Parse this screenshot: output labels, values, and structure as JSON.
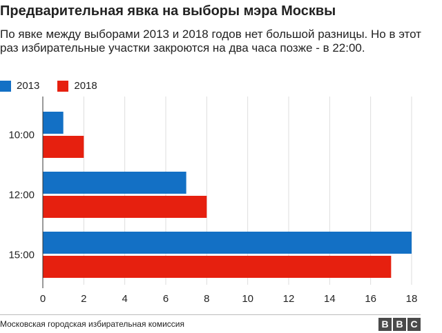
{
  "header": {
    "title": "Предварительная явка на выборы мэра Москвы",
    "subtitle": "По явке между выборами 2013 и 2018 годов нет большой разницы. Но в этот раз избирательные участки закроются на два часа позже - в 22:00."
  },
  "footer": {
    "source": "Московская городская избирательная комиссия",
    "logo_letters": [
      "B",
      "B",
      "C"
    ]
  },
  "chart_data": {
    "type": "bar",
    "orientation": "horizontal",
    "title": "Предварительная явка на выборы мэра Москвы",
    "subtitle": "По явке между выборами 2013 и 2018 годов нет большой разницы. Но в этот раз избирательные участки закроются на два часа позже - в 22:00.",
    "categories": [
      "10:00",
      "12:00",
      "15:00"
    ],
    "series": [
      {
        "name": "2013",
        "color": "#1370C5",
        "values": [
          1,
          7,
          18
        ]
      },
      {
        "name": "2018",
        "color": "#E6200F",
        "values": [
          2,
          8,
          17
        ]
      }
    ],
    "xlim": [
      0,
      18
    ],
    "xticks": [
      "0",
      "2",
      "4",
      "6",
      "8",
      "10",
      "12",
      "14",
      "16",
      "18"
    ],
    "grid": true,
    "legend": "top-left",
    "xlabel": "",
    "ylabel": ""
  }
}
